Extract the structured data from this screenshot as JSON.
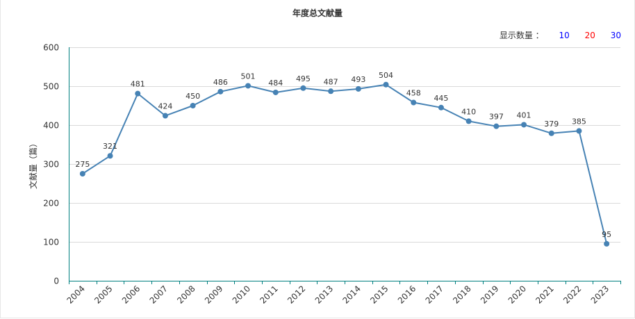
{
  "chart_data": {
    "type": "line",
    "title": "年度总文献量",
    "xlabel": "",
    "ylabel": "文献量（篇）",
    "categories": [
      "2004",
      "2005",
      "2006",
      "2007",
      "2008",
      "2009",
      "2010",
      "2011",
      "2012",
      "2013",
      "2014",
      "2015",
      "2016",
      "2017",
      "2018",
      "2019",
      "2020",
      "2021",
      "2022",
      "2023"
    ],
    "values": [
      275,
      321,
      481,
      424,
      450,
      486,
      501,
      484,
      495,
      487,
      493,
      504,
      458,
      445,
      410,
      397,
      401,
      379,
      385,
      95
    ],
    "ylim": [
      0,
      600
    ],
    "yticks": [
      "0",
      "100",
      "200",
      "300",
      "400",
      "500",
      "600"
    ],
    "grid": true,
    "line_color": "#4682b4",
    "axis_color": "#008080"
  },
  "selector": {
    "label": "显示数量 ：",
    "options": [
      {
        "label": "10",
        "color": "#0000ff"
      },
      {
        "label": "20",
        "color": "#ff0000"
      },
      {
        "label": "30",
        "color": "#0000ff"
      }
    ]
  }
}
